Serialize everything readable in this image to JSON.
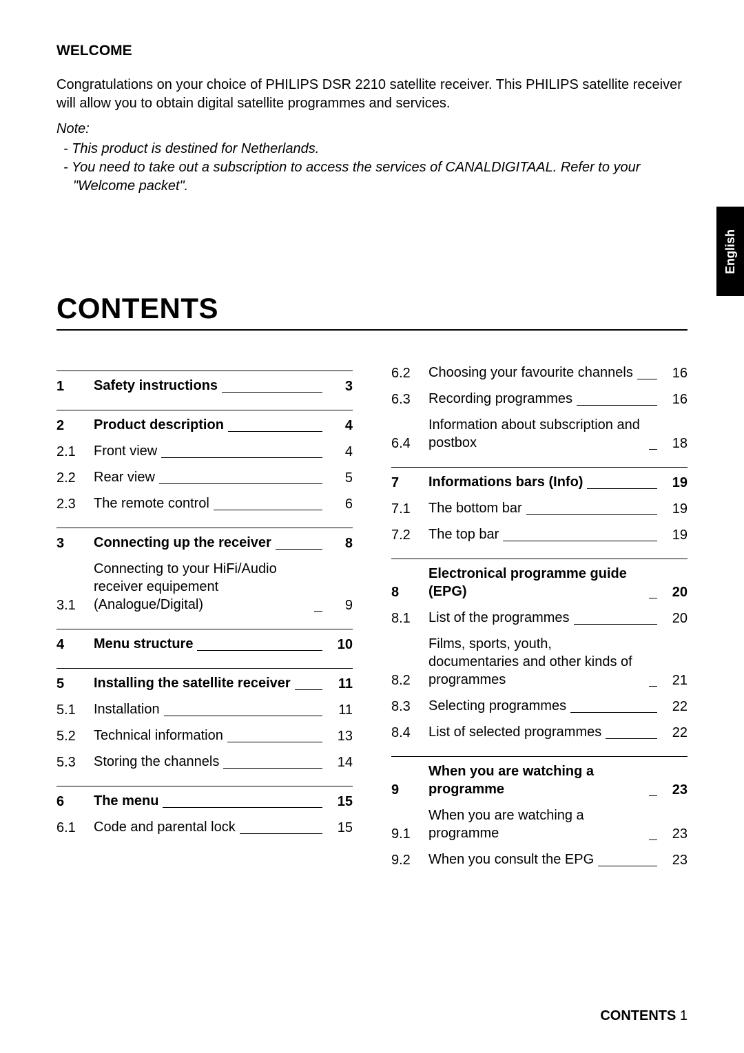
{
  "welcome": {
    "title": "WELCOME",
    "text": "Congratulations on your choice of PHILIPS DSR 2210 satellite receiver. This PHILIPS satellite receiver will allow you to obtain digital satellite programmes and services.",
    "note_label": "Note:",
    "notes": [
      "-  This product is destined for Netherlands.",
      "-  You need to take out a subscription to access the services of CANALDIGITAAL. Refer to your \"Welcome packet\"."
    ]
  },
  "side_tab": "English",
  "contents_title": "CONTENTS",
  "left": {
    "s1": {
      "num": "1",
      "label": "Safety instructions",
      "page": "3",
      "bold": true
    },
    "s2": {
      "num": "2",
      "label": "Product description",
      "page": "4",
      "bold": true
    },
    "s2_1": {
      "num": "2.1",
      "label": "Front view",
      "page": "4"
    },
    "s2_2": {
      "num": "2.2",
      "label": "Rear view",
      "page": "5"
    },
    "s2_3": {
      "num": "2.3",
      "label": "The remote control",
      "page": "6"
    },
    "s3": {
      "num": "3",
      "label": "Connecting up the receiver",
      "page": "8",
      "bold": true
    },
    "s3_1": {
      "num": "3.1",
      "label": "Connecting to your HiFi/Audio receiver equipement (Analogue/Digital)",
      "page": "9"
    },
    "s4": {
      "num": "4",
      "label": "Menu structure",
      "page": "10",
      "bold": true
    },
    "s5": {
      "num": "5",
      "label": "Installing the satellite receiver",
      "page": "11",
      "bold": true
    },
    "s5_1": {
      "num": "5.1",
      "label": "Installation",
      "page": "11"
    },
    "s5_2": {
      "num": "5.2",
      "label": "Technical information",
      "page": "13"
    },
    "s5_3": {
      "num": "5.3",
      "label": "Storing the channels",
      "page": "14"
    },
    "s6": {
      "num": "6",
      "label": "The menu",
      "page": "15",
      "bold": true
    },
    "s6_1": {
      "num": "6.1",
      "label": "Code and parental lock",
      "page": "15"
    }
  },
  "right": {
    "s6_2": {
      "num": "6.2",
      "label": "Choosing your favourite channels",
      "page": "16"
    },
    "s6_3": {
      "num": "6.3",
      "label": "Recording programmes",
      "page": "16"
    },
    "s6_4": {
      "num": "6.4",
      "label": "Information about subscription and postbox",
      "page": "18"
    },
    "s7": {
      "num": "7",
      "label": "Informations bars (Info)",
      "page": "19",
      "bold": true
    },
    "s7_1": {
      "num": "7.1",
      "label": "The bottom bar",
      "page": "19"
    },
    "s7_2": {
      "num": "7.2",
      "label": "The top bar",
      "page": "19"
    },
    "s8": {
      "num": "8",
      "label": "Electronical programme guide (EPG)",
      "page": "20",
      "bold": true
    },
    "s8_1": {
      "num": "8.1",
      "label": "List of the programmes",
      "page": "20"
    },
    "s8_2": {
      "num": "8.2",
      "label": "Films, sports, youth, documentaries and other kinds of programmes",
      "page": "21"
    },
    "s8_3": {
      "num": "8.3",
      "label": "Selecting programmes",
      "page": "22"
    },
    "s8_4": {
      "num": "8.4",
      "label": "List of selected programmes",
      "page": "22"
    },
    "s9": {
      "num": "9",
      "label": "When you are watching a programme",
      "page": "23",
      "bold": true
    },
    "s9_1": {
      "num": "9.1",
      "label": "When you are watching a programme",
      "page": "23"
    },
    "s9_2": {
      "num": "9.2",
      "label": "When you consult the EPG",
      "page": "23"
    }
  },
  "footer": {
    "label": "CONTENTS",
    "page": "1"
  },
  "colors": {
    "background": "#ffffff",
    "text": "#000000",
    "tab_bg": "#000000",
    "tab_text": "#ffffff"
  },
  "typography": {
    "body_fontsize_pt": 15,
    "title_fontsize_pt": 32,
    "family": "sans-serif"
  }
}
